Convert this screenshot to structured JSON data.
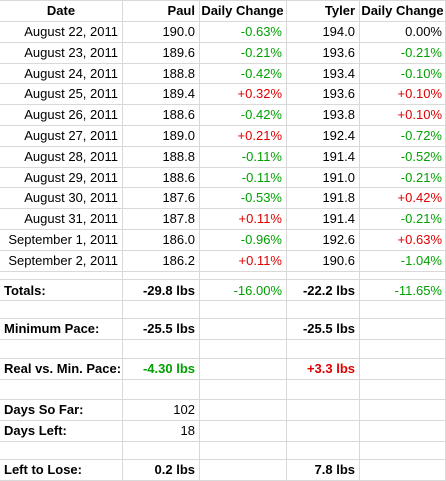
{
  "header": {
    "date": "Date",
    "paul": "Paul",
    "paul_change": "Daily Change",
    "tyler": "Tyler",
    "tyler_change": "Daily Change"
  },
  "rows": [
    {
      "date": "August 22, 2011",
      "paul": "190.0",
      "paul_change": "-0.63%",
      "tyler": "194.0",
      "tyler_change": "0.00%"
    },
    {
      "date": "August 23, 2011",
      "paul": "189.6",
      "paul_change": "-0.21%",
      "tyler": "193.6",
      "tyler_change": "-0.21%"
    },
    {
      "date": "August 24, 2011",
      "paul": "188.8",
      "paul_change": "-0.42%",
      "tyler": "193.4",
      "tyler_change": "-0.10%"
    },
    {
      "date": "August 25, 2011",
      "paul": "189.4",
      "paul_change": "+0.32%",
      "tyler": "193.6",
      "tyler_change": "+0.10%"
    },
    {
      "date": "August 26, 2011",
      "paul": "188.6",
      "paul_change": "-0.42%",
      "tyler": "193.8",
      "tyler_change": "+0.10%"
    },
    {
      "date": "August 27, 2011",
      "paul": "189.0",
      "paul_change": "+0.21%",
      "tyler": "192.4",
      "tyler_change": "-0.72%"
    },
    {
      "date": "August 28, 2011",
      "paul": "188.8",
      "paul_change": "-0.11%",
      "tyler": "191.4",
      "tyler_change": "-0.52%"
    },
    {
      "date": "August 29, 2011",
      "paul": "188.6",
      "paul_change": "-0.11%",
      "tyler": "191.0",
      "tyler_change": "-0.21%"
    },
    {
      "date": "August 30, 2011",
      "paul": "187.6",
      "paul_change": "-0.53%",
      "tyler": "191.8",
      "tyler_change": "+0.42%"
    },
    {
      "date": "August 31, 2011",
      "paul": "187.8",
      "paul_change": "+0.11%",
      "tyler": "191.4",
      "tyler_change": "-0.21%"
    },
    {
      "date": "September 1, 2011",
      "paul": "186.0",
      "paul_change": "-0.96%",
      "tyler": "192.6",
      "tyler_change": "+0.63%"
    },
    {
      "date": "September 2, 2011",
      "paul": "186.2",
      "paul_change": "+0.11%",
      "tyler": "190.6",
      "tyler_change": "-1.04%"
    }
  ],
  "summary": {
    "totals_label": "Totals:",
    "totals_paul": "-29.8 lbs",
    "totals_paul_change": "-16.00%",
    "totals_tyler": "-22.2 lbs",
    "totals_tyler_change": "-11.65%",
    "min_pace_label": "Minimum Pace:",
    "min_pace_paul": "-25.5 lbs",
    "min_pace_tyler": "-25.5 lbs",
    "real_vs_label": "Real vs. Min. Pace:",
    "real_vs_paul": "-4.30 lbs",
    "real_vs_tyler": "+3.3 lbs",
    "days_so_far_label": "Days So Far:",
    "days_so_far": "102",
    "days_left_label": "Days Left:",
    "days_left": "18",
    "left_to_lose_label": "Left to Lose:",
    "left_to_lose_paul": "0.2 lbs",
    "left_to_lose_tyler": "7.8 lbs"
  },
  "colors": {
    "gridline": "#d9d9d9",
    "negative_green": "#00a000",
    "positive_red": "#e00000"
  }
}
